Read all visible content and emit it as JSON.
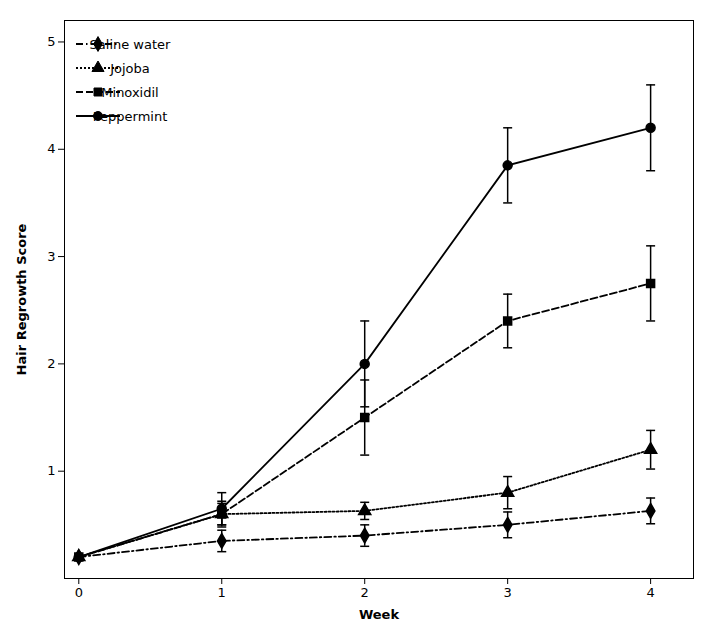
{
  "chart_data": {
    "type": "line",
    "x": [
      0,
      1,
      2,
      3,
      4
    ],
    "series": [
      {
        "name": "Saline water",
        "color": "#000000",
        "marker": "diamond",
        "line_style": "dashdot",
        "values": [
          0.2,
          0.35,
          0.4,
          0.5,
          0.63
        ],
        "errors": [
          0.0,
          0.1,
          0.1,
          0.12,
          0.12
        ]
      },
      {
        "name": "Jojoba",
        "color": "#000000",
        "marker": "triangle",
        "line_style": "dotted",
        "values": [
          0.2,
          0.6,
          0.63,
          0.8,
          1.2
        ],
        "errors": [
          0.0,
          0.1,
          0.08,
          0.15,
          0.18
        ]
      },
      {
        "name": "Minoxidil",
        "color": "#000000",
        "marker": "square",
        "line_style": "dashed",
        "values": [
          0.2,
          0.6,
          1.5,
          2.4,
          2.75
        ],
        "errors": [
          0.0,
          0.12,
          0.35,
          0.25,
          0.35
        ]
      },
      {
        "name": "Peppermint",
        "color": "#000000",
        "marker": "circle",
        "line_style": "solid",
        "values": [
          0.2,
          0.65,
          2.0,
          3.85,
          4.2
        ],
        "errors": [
          0.0,
          0.15,
          0.4,
          0.35,
          0.4
        ]
      }
    ],
    "xlabel": "Week",
    "ylabel": "Hair Regrowth Score",
    "xlim": [
      -0.1,
      4.3
    ],
    "ylim": [
      0.0,
      5.2
    ],
    "xticks": [
      0,
      1,
      2,
      3,
      4
    ],
    "yticks": [
      1,
      2,
      3,
      4,
      5
    ],
    "legend": "upper left",
    "grid": false
  }
}
